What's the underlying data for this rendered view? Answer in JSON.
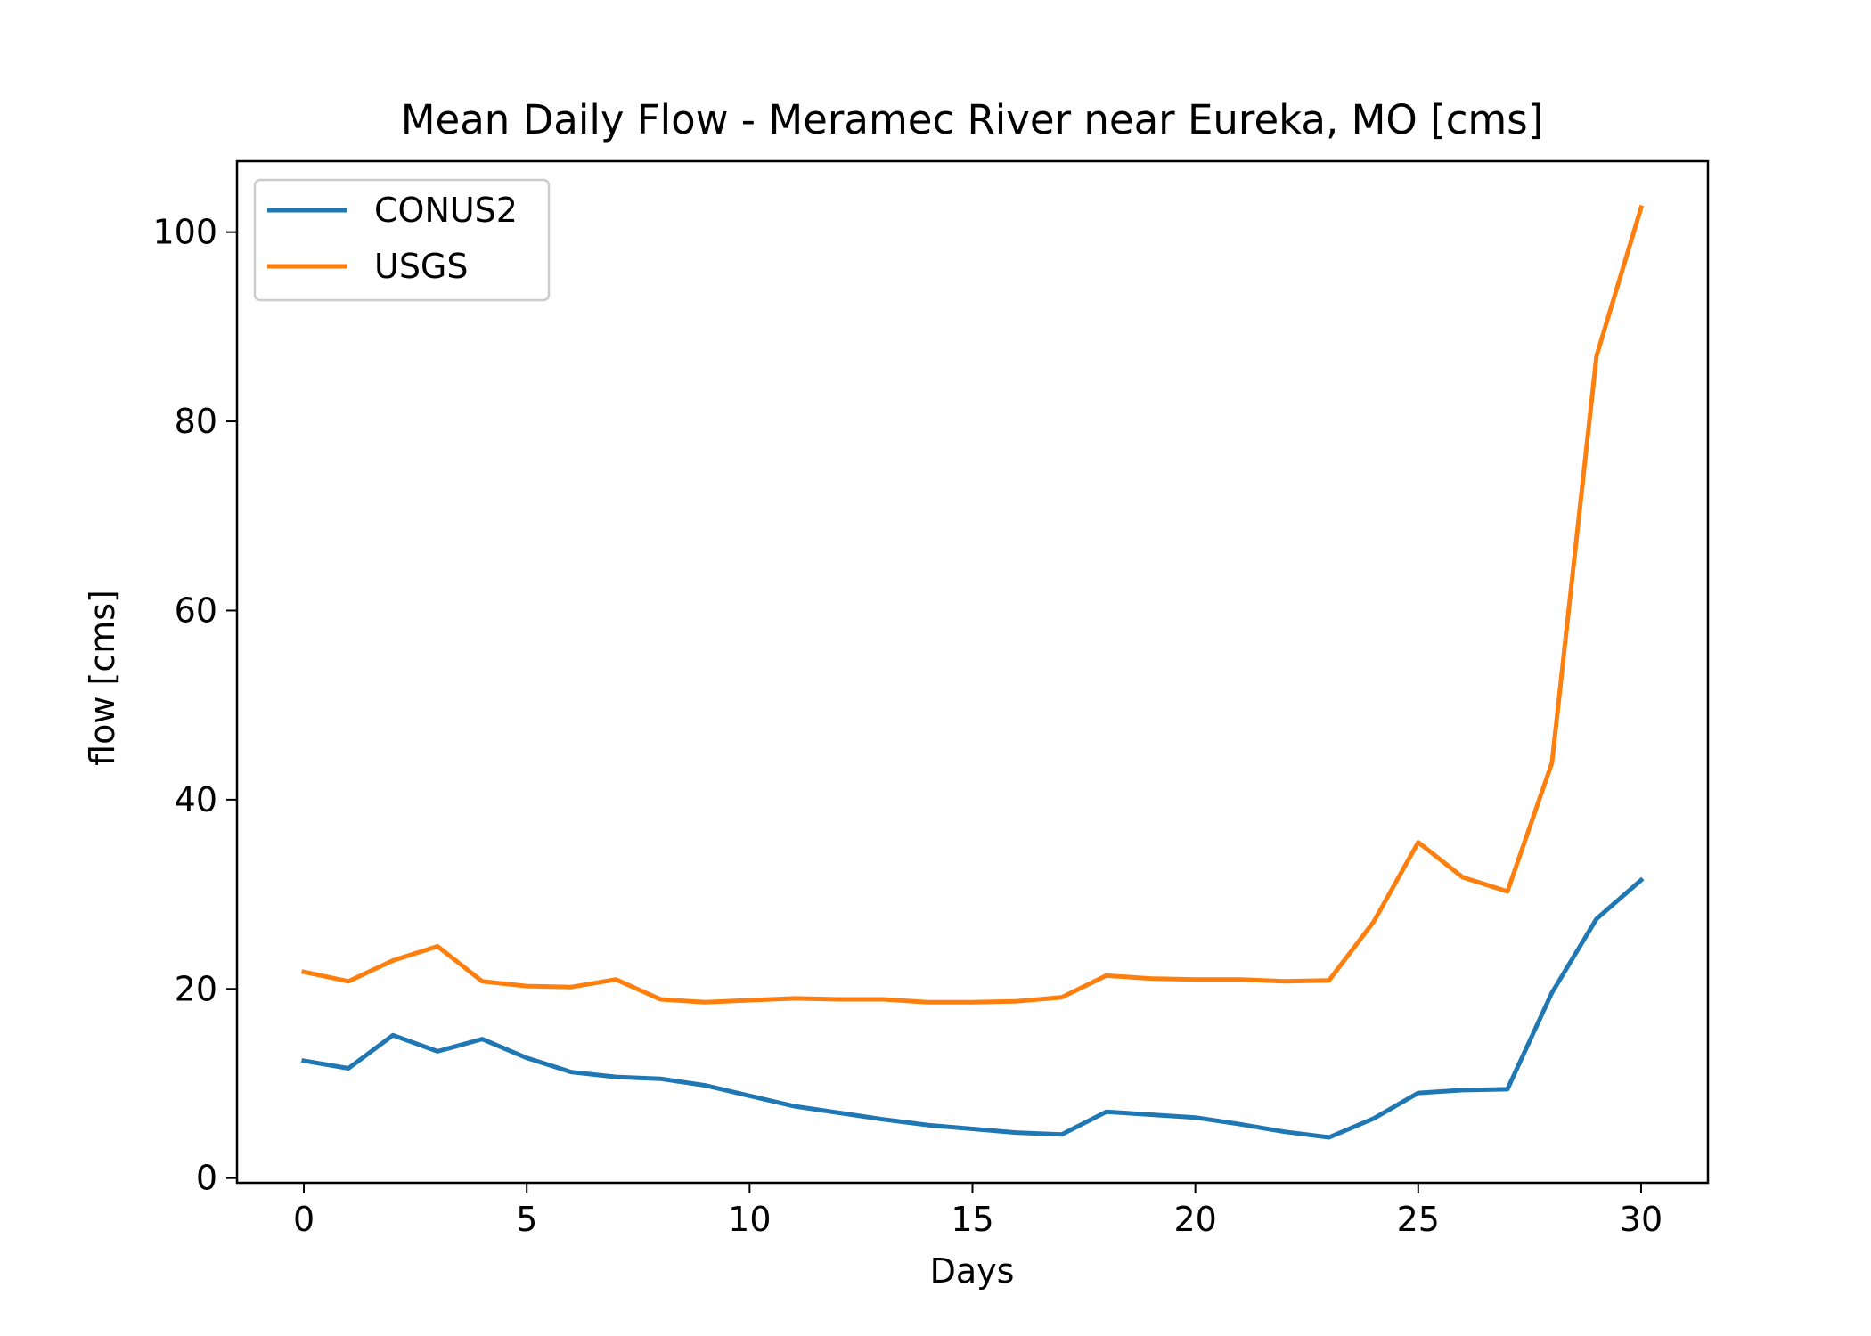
{
  "chart_data": {
    "type": "line",
    "title": "Mean Daily Flow - Meramec River near Eureka, MO [cms]",
    "xlabel": "Days",
    "ylabel": "flow [cms]",
    "xlim": [
      -1.5,
      31.5
    ],
    "ylim": [
      -0.5,
      107.5
    ],
    "xticks": [
      0,
      5,
      10,
      15,
      20,
      25,
      30
    ],
    "yticks": [
      0,
      20,
      40,
      60,
      80,
      100
    ],
    "grid": false,
    "legend_position": "upper left",
    "x": [
      0,
      1,
      2,
      3,
      4,
      5,
      6,
      7,
      8,
      9,
      10,
      11,
      12,
      13,
      14,
      15,
      16,
      17,
      18,
      19,
      20,
      21,
      22,
      23,
      24,
      25,
      26,
      27,
      28,
      29,
      30
    ],
    "series": [
      {
        "name": "CONUS2",
        "color": "#1f77b4",
        "values": [
          12.4,
          11.6,
          15.1,
          13.4,
          14.7,
          12.7,
          11.2,
          10.7,
          10.5,
          9.8,
          8.7,
          7.6,
          6.9,
          6.2,
          5.6,
          5.2,
          4.8,
          4.6,
          7.0,
          6.7,
          6.4,
          5.7,
          4.9,
          4.3,
          6.3,
          9.0,
          9.3,
          9.4,
          19.6,
          27.4,
          31.5
        ],
        "label_key": "legend_conus2"
      },
      {
        "name": "USGS",
        "color": "#ff7f0e",
        "values": [
          21.8,
          20.8,
          23.0,
          24.5,
          20.8,
          20.3,
          20.2,
          21.0,
          18.9,
          18.6,
          18.8,
          19.0,
          18.9,
          18.9,
          18.6,
          18.6,
          18.7,
          19.1,
          21.4,
          21.1,
          21.0,
          21.0,
          20.8,
          20.9,
          27.1,
          35.5,
          31.8,
          30.3,
          43.9,
          86.9,
          102.6
        ]
      }
    ]
  }
}
